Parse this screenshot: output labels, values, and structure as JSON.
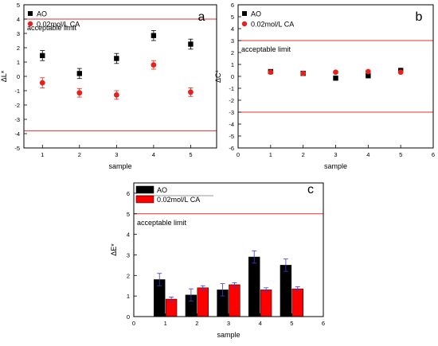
{
  "chart_data": [
    {
      "panel": "a",
      "type": "scatter",
      "xlabel": "sample",
      "ylabel": "ΔL*",
      "xlim": [
        0.5,
        5.7
      ],
      "ylim": [
        -5,
        5
      ],
      "x_ticks": [
        1,
        2,
        3,
        4,
        5
      ],
      "y_ticks": [
        -5,
        -4,
        -3,
        -2,
        -1,
        0,
        1,
        2,
        3,
        4,
        5
      ],
      "legend_position": "top-left",
      "reference_lines": [
        4,
        -3.8
      ],
      "annotation": "acceptable limit",
      "series": [
        {
          "name": "AO",
          "marker": "square",
          "color": "#000000",
          "x": [
            1,
            2,
            3,
            4,
            5
          ],
          "y": [
            1.45,
            0.2,
            1.25,
            2.85,
            2.25
          ],
          "error": [
            0.35,
            0.35,
            0.35,
            0.35,
            0.35
          ]
        },
        {
          "name": "0.02mol/L CA",
          "marker": "circle",
          "color": "#e8211c",
          "x": [
            1,
            2,
            3,
            4,
            5
          ],
          "y": [
            -0.45,
            -1.15,
            -1.3,
            0.8,
            -1.1
          ],
          "error": [
            0.35,
            0.3,
            0.3,
            0.3,
            0.3
          ]
        }
      ]
    },
    {
      "panel": "b",
      "type": "scatter",
      "xlabel": "sample",
      "ylabel": "ΔC*",
      "xlim": [
        0,
        6
      ],
      "ylim": [
        -6,
        6
      ],
      "x_ticks": [
        0,
        1,
        2,
        3,
        4,
        5,
        6
      ],
      "y_ticks": [
        -6,
        -5,
        -4,
        -3,
        -2,
        -1,
        0,
        1,
        2,
        3,
        4,
        5,
        6
      ],
      "legend_position": "top-left",
      "reference_lines": [
        3,
        -3
      ],
      "annotation": "acceptable limit",
      "series": [
        {
          "name": "AO",
          "marker": "square",
          "color": "#000000",
          "x": [
            1,
            2,
            3,
            4,
            5
          ],
          "y": [
            0.4,
            0.25,
            -0.15,
            0.05,
            0.5
          ],
          "error": [
            0.08,
            0.08,
            0.08,
            0.08,
            0.08
          ]
        },
        {
          "name": "0.02mol/L CA",
          "marker": "circle",
          "color": "#e8211c",
          "x": [
            1,
            2,
            3,
            4,
            5
          ],
          "y": [
            0.35,
            0.25,
            0.35,
            0.4,
            0.35
          ],
          "error": [
            0.08,
            0.08,
            0.08,
            0.08,
            0.08
          ]
        }
      ]
    },
    {
      "panel": "c",
      "type": "bar",
      "xlabel": "sample",
      "ylabel": "ΔE*",
      "xlim": [
        0,
        6
      ],
      "ylim": [
        0,
        6.5
      ],
      "x_ticks": [
        0,
        1,
        2,
        3,
        4,
        5,
        6
      ],
      "y_ticks": [
        0,
        1,
        2,
        3,
        4,
        5,
        6
      ],
      "legend_position": "top-left",
      "reference_lines": [
        5
      ],
      "annotation": "acceptable limit",
      "categories": [
        1,
        2,
        3,
        4,
        5
      ],
      "series": [
        {
          "name": "AO",
          "color": "#000000",
          "values": [
            1.8,
            1.05,
            1.3,
            2.9,
            2.5
          ],
          "error": [
            0.3,
            0.3,
            0.3,
            0.3,
            0.3
          ]
        },
        {
          "name": "0.02mol/L CA",
          "color": "#ff0000",
          "values": [
            0.85,
            1.4,
            1.55,
            1.3,
            1.35
          ],
          "error": [
            0.1,
            0.1,
            0.1,
            0.1,
            0.1
          ]
        }
      ]
    }
  ]
}
